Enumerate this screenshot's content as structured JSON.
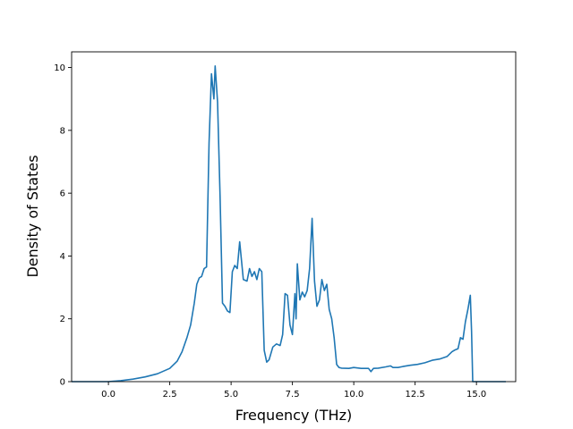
{
  "chart_data": {
    "type": "line",
    "title": "",
    "xlabel": "Frequency (THz)",
    "ylabel": "Density of States",
    "xlim": [
      -1.5,
      16.6
    ],
    "ylim": [
      0,
      10.5
    ],
    "xticks": [
      0.0,
      2.5,
      5.0,
      7.5,
      10.0,
      12.5,
      15.0
    ],
    "xtick_labels": [
      "0.0",
      "2.5",
      "5.0",
      "7.5",
      "10.0",
      "12.5",
      "15.0"
    ],
    "yticks": [
      0,
      2,
      4,
      6,
      8,
      10
    ],
    "ytick_labels": [
      "0",
      "2",
      "4",
      "6",
      "8",
      "10"
    ],
    "grid": false,
    "line_color": "#1f77b4",
    "series": [
      {
        "x": [
          -1.5,
          -0.5,
          0.0,
          0.5,
          1.0,
          1.5,
          2.0,
          2.5,
          2.8,
          3.0,
          3.2,
          3.35,
          3.5,
          3.6,
          3.7,
          3.8,
          3.9,
          4.0,
          4.1,
          4.2,
          4.3,
          4.35,
          4.45,
          4.55,
          4.65,
          4.75,
          4.85,
          4.95,
          5.05,
          5.15,
          5.25,
          5.35,
          5.5,
          5.65,
          5.75,
          5.85,
          5.95,
          6.05,
          6.15,
          6.25,
          6.35,
          6.45,
          6.55,
          6.7,
          6.85,
          7.0,
          7.1,
          7.2,
          7.3,
          7.4,
          7.5,
          7.6,
          7.65,
          7.7,
          7.8,
          7.9,
          8.0,
          8.1,
          8.2,
          8.3,
          8.4,
          8.5,
          8.6,
          8.7,
          8.8,
          8.9,
          9.0,
          9.1,
          9.2,
          9.3,
          9.4,
          9.5,
          9.8,
          10.0,
          10.3,
          10.6,
          10.7,
          10.8,
          11.0,
          11.3,
          11.5,
          11.6,
          11.8,
          12.0,
          12.3,
          12.6,
          12.9,
          13.2,
          13.5,
          13.8,
          14.0,
          14.1,
          14.25,
          14.35,
          14.45,
          14.55,
          14.65,
          14.75,
          14.8,
          14.85,
          15.0,
          15.5,
          16.2
        ],
        "y": [
          0.0,
          0.0,
          0.0,
          0.03,
          0.08,
          0.15,
          0.25,
          0.42,
          0.65,
          0.95,
          1.4,
          1.8,
          2.5,
          3.1,
          3.3,
          3.35,
          3.6,
          3.65,
          7.6,
          9.8,
          9.0,
          10.05,
          8.9,
          5.9,
          2.5,
          2.4,
          2.25,
          2.2,
          3.5,
          3.7,
          3.6,
          4.45,
          3.25,
          3.2,
          3.6,
          3.35,
          3.5,
          3.25,
          3.6,
          3.5,
          1.0,
          0.62,
          0.7,
          1.1,
          1.2,
          1.15,
          1.5,
          2.8,
          2.75,
          1.8,
          1.5,
          2.8,
          2.0,
          3.75,
          2.6,
          2.85,
          2.7,
          2.9,
          3.6,
          5.2,
          3.2,
          2.4,
          2.6,
          3.25,
          2.9,
          3.1,
          2.3,
          2.0,
          1.4,
          0.55,
          0.45,
          0.43,
          0.42,
          0.45,
          0.42,
          0.42,
          0.32,
          0.42,
          0.43,
          0.47,
          0.5,
          0.45,
          0.45,
          0.48,
          0.52,
          0.55,
          0.6,
          0.68,
          0.72,
          0.8,
          0.95,
          1.0,
          1.05,
          1.4,
          1.35,
          1.9,
          2.3,
          2.75,
          1.6,
          0.0,
          0.0,
          0.0,
          0.0
        ]
      }
    ]
  }
}
